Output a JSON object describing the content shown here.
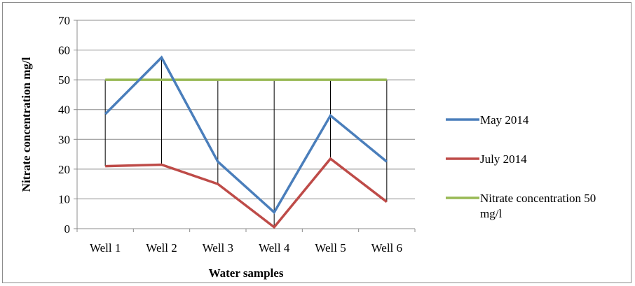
{
  "chart_data": {
    "type": "line",
    "categories": [
      "Well 1",
      "Well 2",
      "Well 3",
      "Well 4",
      "Well 5",
      "Well 6"
    ],
    "series": [
      {
        "name": "May 2014",
        "color": "#4a7ebb",
        "values": [
          38.5,
          57.5,
          22.5,
          5.5,
          38,
          22.5
        ]
      },
      {
        "name": "July 2014",
        "color": "#be4b48",
        "values": [
          21,
          21.5,
          15,
          0.5,
          23.5,
          9
        ]
      },
      {
        "name": "Nitrate concentration 50 mg/l",
        "name_lines": [
          "Nitrate concentration 50",
          "mg/l"
        ],
        "color": "#98b954",
        "values": [
          50,
          50,
          50,
          50,
          50,
          50
        ]
      }
    ],
    "drop_lines": true,
    "xlabel": "Water samples",
    "ylabel": "Nitrate concentration mg/l",
    "ylim": [
      0,
      70
    ],
    "yticks": [
      0,
      10,
      20,
      30,
      40,
      50,
      60,
      70
    ],
    "grid": true,
    "legend_position": "right"
  }
}
